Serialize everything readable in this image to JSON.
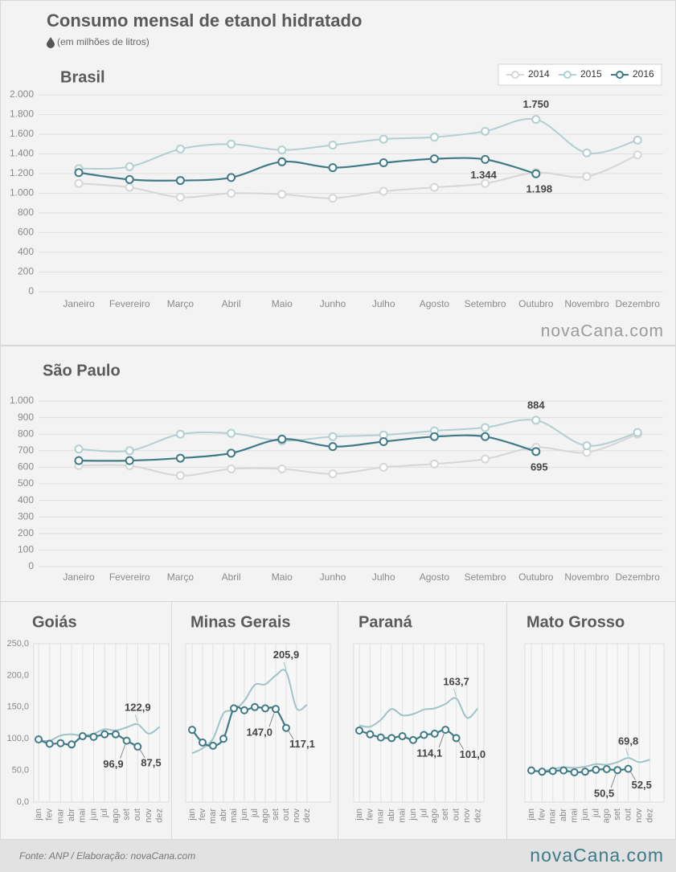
{
  "header": {
    "title": "Consumo mensal de etanol hidratado",
    "subtitle": "(em milhões de litros)"
  },
  "brand": "novaCana.com",
  "footer": {
    "source": "Fonte: ANP / Elaboração: novaCana.com"
  },
  "chart_data": [
    {
      "type": "line",
      "title": "Brasil",
      "legend": "upper right",
      "grid": "y",
      "categories": [
        "Janeiro",
        "Fevereiro",
        "Março",
        "Abril",
        "Maio",
        "Junho",
        "Julho",
        "Agosto",
        "Setembro",
        "Outubro",
        "Novembro",
        "Dezembro"
      ],
      "ylim": [
        0,
        2000
      ],
      "yticks": [
        0,
        {
          "value": 200,
          "label": "200"
        },
        400,
        600,
        800,
        {
          "value": 1000,
          "label": "1.000"
        },
        {
          "value": 1200,
          "label": "1.200"
        },
        {
          "value": 1400,
          "label": "1.400"
        },
        {
          "value": 1600,
          "label": "1.600"
        },
        {
          "value": 1800,
          "label": "1.800"
        },
        {
          "value": 2000,
          "label": "2.000"
        }
      ],
      "series": [
        {
          "name": "2014",
          "color": "#d6d6d6",
          "markers": true,
          "values": [
            1100,
            1060,
            960,
            1000,
            990,
            950,
            1020,
            1060,
            1100,
            1210,
            1170,
            1390
          ]
        },
        {
          "name": "2015",
          "color": "#b3cfd2",
          "markers": true,
          "values": [
            1250,
            1270,
            1450,
            1500,
            1440,
            1490,
            1550,
            1570,
            1630,
            1750,
            1410,
            1540
          ],
          "value_labels": [
            null,
            null,
            null,
            null,
            null,
            null,
            null,
            null,
            null,
            "1.750",
            null,
            null
          ]
        },
        {
          "name": "2016",
          "color": "#3f7b87",
          "markers": true,
          "values": [
            1210,
            1140,
            1130,
            1160,
            1320,
            1260,
            1310,
            1350,
            1344,
            1198,
            null,
            null
          ],
          "value_labels": [
            null,
            null,
            null,
            null,
            null,
            null,
            null,
            null,
            "1.344",
            "1.198",
            null,
            null
          ]
        }
      ]
    },
    {
      "type": "line",
      "title": "São Paulo",
      "grid": "y",
      "categories": [
        "Janeiro",
        "Fevereiro",
        "Março",
        "Abril",
        "Maio",
        "Junho",
        "Julho",
        "Agosto",
        "Setembro",
        "Outubro",
        "Novembro",
        "Dezembro"
      ],
      "ylim": [
        0,
        1000
      ],
      "yticks": [
        0,
        100,
        200,
        300,
        400,
        500,
        600,
        700,
        800,
        900,
        {
          "value": 1000,
          "label": "1.000"
        }
      ],
      "series": [
        {
          "color": "#d6d6d6",
          "markers": true,
          "values": [
            610,
            610,
            550,
            590,
            590,
            560,
            600,
            620,
            650,
            720,
            690,
            800
          ]
        },
        {
          "color": "#b3cfd2",
          "markers": true,
          "values": [
            710,
            700,
            800,
            805,
            760,
            785,
            795,
            820,
            840,
            884,
            730,
            810
          ],
          "value_labels": [
            null,
            null,
            null,
            null,
            null,
            null,
            null,
            null,
            null,
            "884",
            null,
            null
          ]
        },
        {
          "color": "#3f7b87",
          "markers": true,
          "values": [
            640,
            640,
            655,
            685,
            770,
            725,
            755,
            785,
            785,
            695,
            null,
            null
          ],
          "value_labels": [
            null,
            null,
            null,
            null,
            null,
            null,
            null,
            null,
            null,
            "695",
            null,
            null
          ]
        }
      ]
    },
    {
      "type": "line",
      "title": "Goiás",
      "grid": "x",
      "categories": [
        "jan",
        "fev",
        "mar",
        "abr",
        "mai",
        "jun",
        "jul",
        "ago",
        "set",
        "out",
        "nov",
        "dez"
      ],
      "ylim": [
        0,
        250
      ],
      "yticks": [
        {
          "value": 0,
          "label": "0,0"
        },
        {
          "value": 50,
          "label": "50,0"
        },
        {
          "value": 100,
          "label": "100,0"
        },
        {
          "value": 150,
          "label": "150,0"
        },
        {
          "value": 200,
          "label": "200,0"
        },
        {
          "value": 250,
          "label": "250,0"
        }
      ],
      "series": [
        {
          "color": "#9fc3c7",
          "markers": false,
          "values": [
            97,
            97,
            105,
            107,
            105,
            108,
            115,
            113,
            118,
            122.9,
            108,
            119
          ],
          "value_labels": [
            null,
            null,
            null,
            null,
            null,
            null,
            null,
            null,
            null,
            "122,9",
            null,
            null
          ]
        },
        {
          "color": "#3f7b87",
          "markers": true,
          "values": [
            99,
            92,
            93,
            91,
            104,
            103,
            107,
            107,
            96.9,
            87.5,
            null,
            null
          ],
          "value_labels": [
            null,
            null,
            null,
            null,
            null,
            null,
            null,
            null,
            "96,9",
            "87,5",
            null,
            null
          ]
        }
      ]
    },
    {
      "type": "line",
      "title": "Minas Gerais",
      "grid": "x",
      "categories": [
        "jan",
        "fev",
        "mar",
        "abr",
        "mai",
        "jun",
        "jul",
        "ago",
        "set",
        "out",
        "nov",
        "dez"
      ],
      "ylim": [
        0,
        250
      ],
      "series": [
        {
          "color": "#9fc3c7",
          "markers": false,
          "values": [
            77,
            85,
            100,
            140,
            145,
            160,
            185,
            186,
            200,
            205.9,
            148,
            154
          ],
          "value_labels": [
            null,
            null,
            null,
            null,
            null,
            null,
            null,
            null,
            null,
            "205,9",
            null,
            null
          ]
        },
        {
          "color": "#3f7b87",
          "markers": true,
          "values": [
            114,
            94,
            89,
            100,
            148,
            145,
            150,
            148,
            147.0,
            117.1,
            null,
            null
          ],
          "value_labels": [
            null,
            null,
            null,
            null,
            null,
            null,
            null,
            null,
            "147,0",
            "117,1",
            null,
            null
          ]
        }
      ]
    },
    {
      "type": "line",
      "title": "Paraná",
      "grid": "x",
      "categories": [
        "jan",
        "fev",
        "mar",
        "abr",
        "mai",
        "jun",
        "jul",
        "ago",
        "set",
        "out",
        "nov",
        "dez"
      ],
      "ylim": [
        0,
        250
      ],
      "series": [
        {
          "color": "#9fc3c7",
          "markers": false,
          "values": [
            121,
            119,
            130,
            147,
            137,
            139,
            146,
            148,
            155,
            163.7,
            133,
            148
          ],
          "value_labels": [
            null,
            null,
            null,
            null,
            null,
            null,
            null,
            null,
            null,
            "163,7",
            null,
            null
          ]
        },
        {
          "color": "#3f7b87",
          "markers": true,
          "values": [
            113,
            107,
            102,
            101,
            104,
            98,
            106,
            108,
            114.1,
            101.0,
            null,
            null
          ],
          "value_labels": [
            null,
            null,
            null,
            null,
            null,
            null,
            null,
            null,
            "114,1",
            "101,0",
            null,
            null
          ]
        }
      ]
    },
    {
      "type": "line",
      "title": "Mato Grosso",
      "grid": "x",
      "categories": [
        "jan",
        "fev",
        "mar",
        "abr",
        "mai",
        "jun",
        "jul",
        "ago",
        "set",
        "out",
        "nov",
        "dez"
      ],
      "ylim": [
        0,
        250
      ],
      "series": [
        {
          "color": "#9fc3c7",
          "markers": false,
          "values": [
            49,
            49,
            52,
            55,
            54,
            56,
            60,
            59,
            63,
            69.8,
            63,
            67
          ],
          "value_labels": [
            null,
            null,
            null,
            null,
            null,
            null,
            null,
            null,
            null,
            "69,8",
            null,
            null
          ]
        },
        {
          "color": "#3f7b87",
          "markers": true,
          "values": [
            50,
            48,
            49,
            50,
            47,
            48,
            51,
            52,
            50.5,
            52.5,
            null,
            null
          ],
          "value_labels": [
            null,
            null,
            null,
            null,
            null,
            null,
            null,
            null,
            "50,5",
            "52,5",
            null,
            null
          ]
        }
      ]
    }
  ]
}
